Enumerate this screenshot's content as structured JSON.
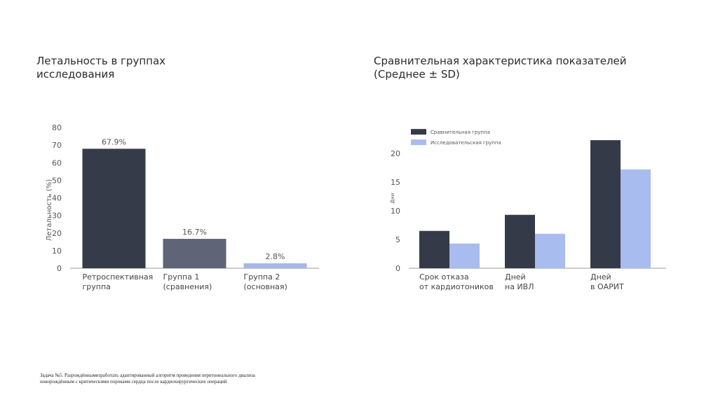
{
  "chart_data": [
    {
      "type": "bar",
      "title": "Летальность в группах\nисследования",
      "categories": [
        "Ретроспективная\nгруппа",
        "Группа 1\n(сравнения)",
        "Группа 2\n(основная)"
      ],
      "values": [
        67.9,
        16.7,
        2.8
      ],
      "value_labels": [
        "67.9%",
        "16.7%",
        "2.8%"
      ],
      "colors": [
        "#363b4a",
        "#5f6577",
        "#a7b6e6"
      ],
      "y_label": "Летальность (%)",
      "ylim": [
        0,
        80
      ],
      "yticks": [
        0,
        10,
        20,
        30,
        40,
        50,
        60,
        70,
        80
      ]
    },
    {
      "type": "grouped_bar",
      "title": "Сравнительная характеристика показателей\n(Среднее ± SD)",
      "categories": [
        "Срок отказа\nот кардиотоников",
        "Дней\nна ИВЛ",
        "Дней\nв ОАРИТ"
      ],
      "series": [
        {
          "name": "Сравнительная группа",
          "color": "#353a48",
          "values": [
            6.5,
            9.3,
            22.3
          ]
        },
        {
          "name": "Исследовательская группа",
          "color": "#a9bcf0",
          "values": [
            4.3,
            6.0,
            17.2
          ]
        }
      ],
      "y_label": "Дни",
      "legend": "upper left",
      "ylim": [
        0,
        24
      ],
      "yticks": [
        0,
        5,
        10,
        15,
        20
      ]
    }
  ],
  "footnote": "Задача №5. Разрождённымизработать адаптированный алгоритм проведения перитонеального диализа\nноворождённым с критическими пороками сердца после кардиохирургических операций"
}
